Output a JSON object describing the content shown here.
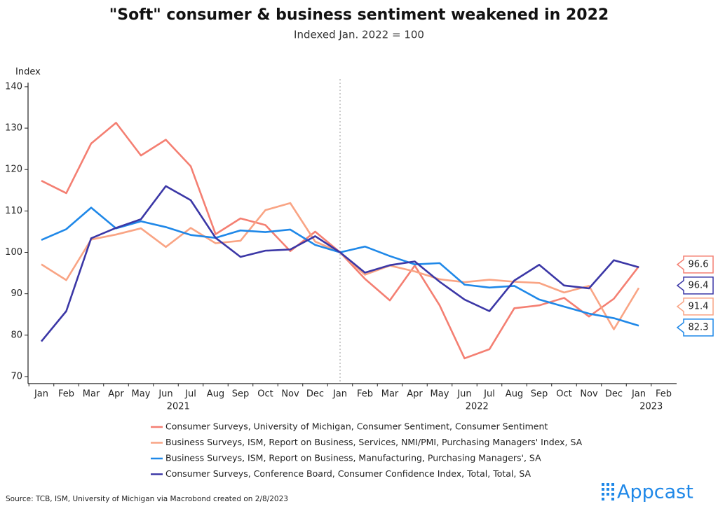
{
  "chart_data": {
    "type": "line",
    "title": "\"Soft\" consumer & business sentiment weakened in 2022",
    "subtitle": "Indexed Jan. 2022 = 100",
    "y_label": "Index",
    "categories": [
      "Jan",
      "Feb",
      "Mar",
      "Apr",
      "May",
      "Jun",
      "Jul",
      "Aug",
      "Sep",
      "Oct",
      "Nov",
      "Dec",
      "Jan",
      "Feb",
      "Mar",
      "Apr",
      "May",
      "Jun",
      "Jul",
      "Aug",
      "Sep",
      "Oct",
      "Nov",
      "Dec",
      "Jan",
      "Feb"
    ],
    "x_groups": [
      {
        "label": "2021",
        "count": 12
      },
      {
        "label": "2022",
        "count": 12
      },
      {
        "label": "2023",
        "count": 2
      }
    ],
    "vline_category": 12,
    "ylim": [
      68.3,
      141
    ],
    "yticks": [
      70,
      80,
      90,
      100,
      110,
      120,
      130,
      140
    ],
    "series": [
      {
        "name": "Consumer Surveys, University of Michigan, Consumer Sentiment, Consumer Sentiment",
        "color": "#f47f72",
        "values": [
          117.3,
          114.3,
          126.3,
          131.3,
          123.4,
          127.2,
          120.8,
          104.4,
          108.2,
          106.6,
          100.3,
          105.0,
          100,
          93.6,
          88.4,
          96.8,
          87.2,
          74.4,
          76.6,
          86.5,
          87.2,
          89.0,
          84.5,
          88.8,
          96.6,
          null
        ]
      },
      {
        "name": "Business Surveys, ISM, Report on Business, Services, NMI/PMI, Purchasing Managers' Index, SA",
        "color": "#f9a484",
        "values": [
          97.1,
          93.3,
          103.1,
          104.3,
          105.8,
          101.3,
          105.9,
          102.2,
          102.8,
          110.2,
          111.9,
          102.6,
          100,
          94.6,
          96.8,
          95.4,
          93.5,
          92.8,
          93.4,
          92.9,
          92.6,
          90.3,
          91.9,
          81.4,
          91.4,
          null
        ]
      },
      {
        "name": "Business Surveys, ISM, Report on Business, Manufacturing, Purchasing Managers', SA",
        "color": "#1f88e8",
        "values": [
          103.0,
          105.6,
          110.8,
          105.8,
          107.5,
          106.1,
          104.2,
          103.5,
          105.3,
          104.9,
          105.5,
          101.8,
          100,
          101.4,
          99.1,
          97.1,
          97.4,
          92.2,
          91.5,
          91.9,
          88.6,
          86.9,
          85.2,
          84.1,
          82.3,
          null
        ]
      },
      {
        "name": "Consumer Surveys, Conference Board, Consumer Confidence Index, Total, Total, SA",
        "color": "#3b37a6",
        "values": [
          78.5,
          85.8,
          103.4,
          105.9,
          108.0,
          116.0,
          112.6,
          103.5,
          98.9,
          100.4,
          100.7,
          103.9,
          100,
          95.1,
          96.9,
          97.8,
          92.9,
          88.6,
          85.8,
          93.2,
          97.0,
          92.0,
          91.3,
          98.1,
          96.4,
          null
        ]
      }
    ],
    "source": "Source: TCB, ISM, University of Michigan via Macrobond created on 2/8/2023",
    "brand": "Appcast"
  }
}
